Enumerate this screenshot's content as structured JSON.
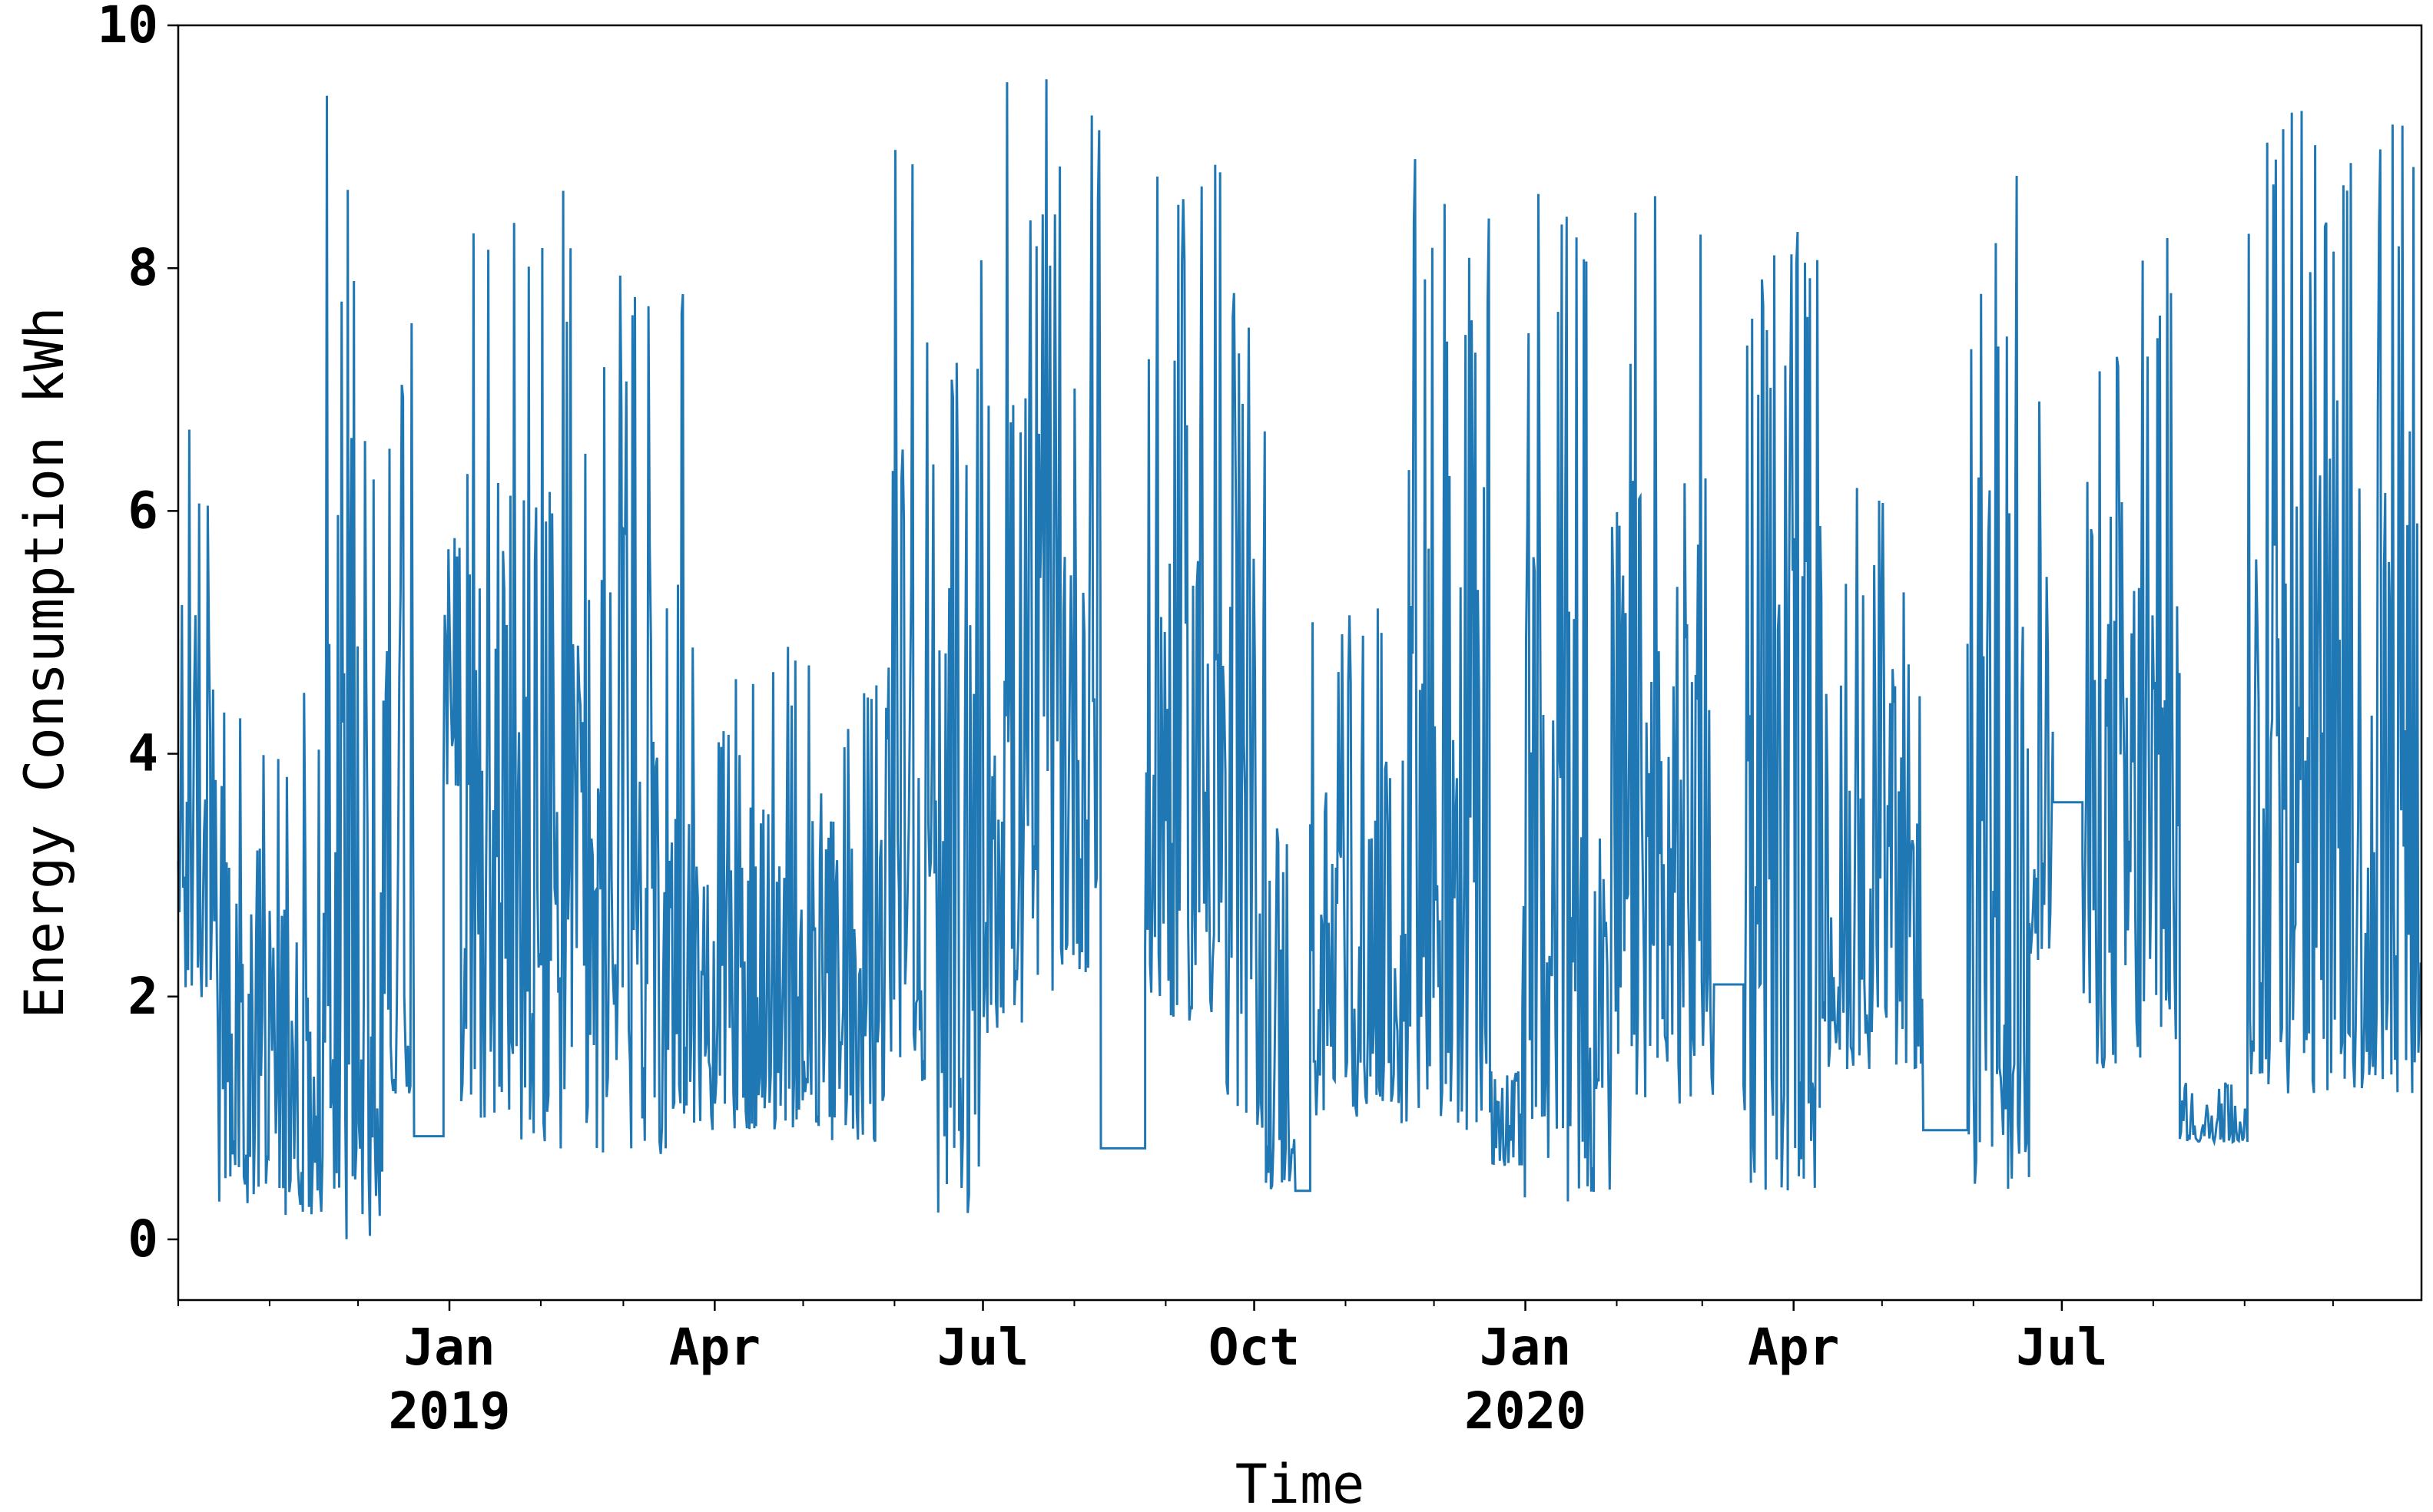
{
  "chart_data": {
    "type": "line",
    "title": "",
    "xlabel": "Time",
    "ylabel": "Energy Consumption kWh",
    "ylim": [
      -0.5,
      10
    ],
    "xlim": [
      "2018-10-01",
      "2020-10-31"
    ],
    "grid": false,
    "y_ticks": [
      0,
      2,
      4,
      6,
      8,
      10
    ],
    "x_ticks": [
      {
        "date": "2019-01-01",
        "label": "Jan",
        "sublabel": "2019"
      },
      {
        "date": "2019-04-01",
        "label": "Apr",
        "sublabel": ""
      },
      {
        "date": "2019-07-01",
        "label": "Jul",
        "sublabel": ""
      },
      {
        "date": "2019-10-01",
        "label": "Oct",
        "sublabel": ""
      },
      {
        "date": "2020-01-01",
        "label": "Jan",
        "sublabel": "2020"
      },
      {
        "date": "2020-04-01",
        "label": "Apr",
        "sublabel": ""
      },
      {
        "date": "2020-07-01",
        "label": "Jul",
        "sublabel": ""
      }
    ],
    "colors": {
      "series": "#1f77b4"
    },
    "series": [
      {
        "name": "",
        "segments": [
          {
            "start": "2018-10-01",
            "end": "2018-10-12",
            "lo": 1.9,
            "hi": 6.8
          },
          {
            "start": "2018-10-12",
            "end": "2018-11-20",
            "lo": 0.2,
            "hi": 4.6
          },
          {
            "start": "2018-11-20",
            "end": "2018-12-10",
            "lo": 0.0,
            "hi": 9.6
          },
          {
            "start": "2018-12-10",
            "end": "2018-12-20",
            "lo": 1.2,
            "hi": 7.8
          },
          {
            "start": "2018-12-20",
            "end": "2018-12-30",
            "lo": 0.8,
            "hi": 0.9,
            "flat": true
          },
          {
            "start": "2018-12-30",
            "end": "2019-01-05",
            "lo": 3.7,
            "hi": 5.8
          },
          {
            "start": "2019-01-05",
            "end": "2019-01-25",
            "lo": 1.0,
            "hi": 9.6
          },
          {
            "start": "2019-01-25",
            "end": "2019-02-20",
            "lo": 0.7,
            "hi": 9.0
          },
          {
            "start": "2019-02-20",
            "end": "2019-03-25",
            "lo": 0.7,
            "hi": 8.2
          },
          {
            "start": "2019-03-25",
            "end": "2019-04-15",
            "lo": 0.9,
            "hi": 4.7
          },
          {
            "start": "2019-04-15",
            "end": "2019-05-10",
            "lo": 0.9,
            "hi": 4.9
          },
          {
            "start": "2019-05-10",
            "end": "2019-05-31",
            "lo": 0.8,
            "hi": 4.8
          },
          {
            "start": "2019-05-31",
            "end": "2019-06-10",
            "lo": 1.5,
            "hi": 9.0
          },
          {
            "start": "2019-06-10",
            "end": "2019-06-30",
            "lo": 0.2,
            "hi": 7.6
          },
          {
            "start": "2019-06-30",
            "end": "2019-07-25",
            "lo": 1.7,
            "hi": 9.6
          },
          {
            "start": "2019-07-25",
            "end": "2019-08-10",
            "lo": 2.2,
            "hi": 9.6
          },
          {
            "start": "2019-08-10",
            "end": "2019-08-25",
            "lo": 0.6,
            "hi": 0.9,
            "flat": true
          },
          {
            "start": "2019-08-25",
            "end": "2019-09-20",
            "lo": 1.8,
            "hi": 9.6
          },
          {
            "start": "2019-09-20",
            "end": "2019-10-05",
            "lo": 0.9,
            "hi": 8.0
          },
          {
            "start": "2019-10-05",
            "end": "2019-10-15",
            "lo": 0.4,
            "hi": 5.2
          },
          {
            "start": "2019-10-15",
            "end": "2019-10-20",
            "lo": 0.4,
            "hi": 0.4,
            "flat": true
          },
          {
            "start": "2019-10-20",
            "end": "2019-11-20",
            "lo": 1.0,
            "hi": 5.2
          },
          {
            "start": "2019-11-20",
            "end": "2019-12-20",
            "lo": 0.9,
            "hi": 8.9
          },
          {
            "start": "2019-12-20",
            "end": "2019-12-31",
            "lo": 0.6,
            "hi": 1.4
          },
          {
            "start": "2019-12-31",
            "end": "2020-01-30",
            "lo": 0.3,
            "hi": 8.8
          },
          {
            "start": "2020-01-30",
            "end": "2020-03-05",
            "lo": 1.1,
            "hi": 8.6
          },
          {
            "start": "2020-03-05",
            "end": "2020-03-15",
            "lo": 2.1,
            "hi": 2.1,
            "flat": true
          },
          {
            "start": "2020-03-15",
            "end": "2020-04-10",
            "lo": 0.4,
            "hi": 8.4
          },
          {
            "start": "2020-04-10",
            "end": "2020-05-15",
            "lo": 1.4,
            "hi": 6.2
          },
          {
            "start": "2020-05-15",
            "end": "2020-05-30",
            "lo": 0.9,
            "hi": 0.9,
            "flat": true
          },
          {
            "start": "2020-05-30",
            "end": "2020-06-20",
            "lo": 0.4,
            "hi": 9.0
          },
          {
            "start": "2020-06-20",
            "end": "2020-06-28",
            "lo": 2.3,
            "hi": 7.5
          },
          {
            "start": "2020-06-28",
            "end": "2020-07-08",
            "lo": 3.6,
            "hi": 3.6,
            "flat": true
          },
          {
            "start": "2020-07-08",
            "end": "2020-08-10",
            "lo": 1.4,
            "hi": 8.4
          },
          {
            "start": "2020-08-10",
            "end": "2020-09-02",
            "lo": 0.8,
            "hi": 1.3
          },
          {
            "start": "2020-09-02",
            "end": "2020-10-31",
            "lo": 1.2,
            "hi": 9.5
          }
        ]
      }
    ]
  }
}
